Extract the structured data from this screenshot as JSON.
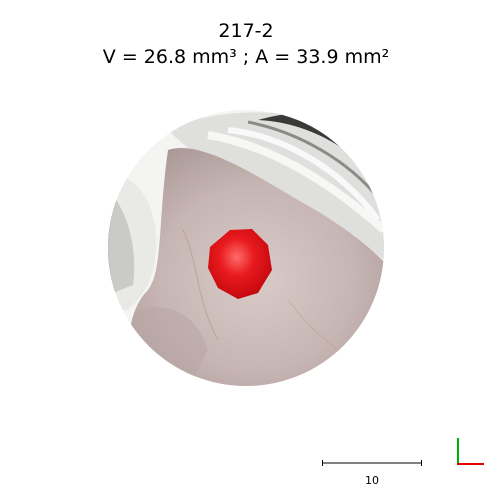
{
  "header": {
    "title": "217-2",
    "measurements": "V = 26.8 mm³ ; A = 33.9 mm²"
  },
  "scale_bar": {
    "label": "10"
  },
  "colors": {
    "lesion": "#e0121a",
    "skin": "#c8b9b6",
    "axis_x": "#e00000",
    "axis_y": "#00b000"
  }
}
